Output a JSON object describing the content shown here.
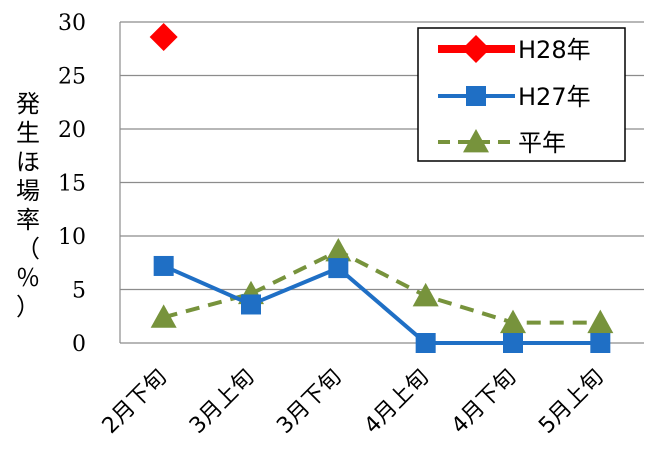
{
  "chart_data": {
    "type": "line",
    "categories": [
      "2月下旬",
      "3月上旬",
      "3月下旬",
      "4月上旬",
      "4月下旬",
      "5月上旬"
    ],
    "ylabel": [
      "発",
      "生",
      "ほ",
      "場",
      "率",
      "（",
      "％",
      "）"
    ],
    "ylim": [
      0,
      30
    ],
    "yticks": [
      "0",
      "5",
      "10",
      "15",
      "20",
      "25",
      "30"
    ],
    "grid": true,
    "legend_position": "top-right",
    "series": [
      {
        "name": "H28年",
        "values": [
          28.6,
          null,
          null,
          null,
          null,
          null
        ],
        "color": "#ff0000",
        "marker": "diamond",
        "dash": "solid"
      },
      {
        "name": "H27年",
        "values": [
          7.2,
          3.6,
          7.0,
          0,
          0,
          0
        ],
        "color": "#1f6fc5",
        "marker": "square",
        "dash": "solid"
      },
      {
        "name": "平年",
        "values": [
          2.4,
          4.6,
          8.6,
          4.4,
          1.9,
          1.9
        ],
        "color": "#77933c",
        "marker": "triangle",
        "dash": "dashed"
      }
    ]
  }
}
